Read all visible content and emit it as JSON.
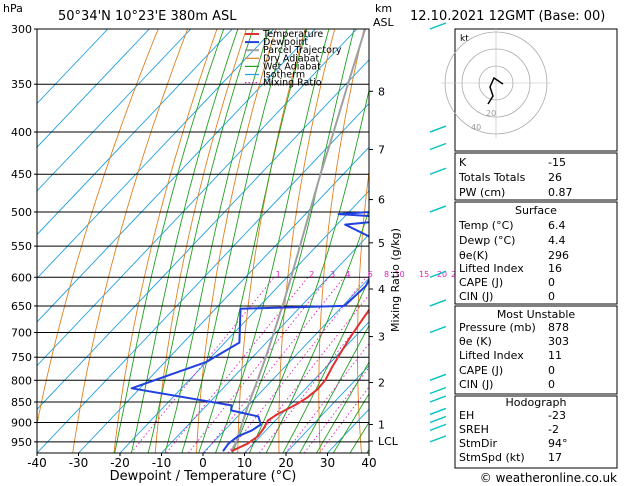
{
  "header": {
    "hpa_label": "hPa",
    "location": "50°34'N  10°23'E  380m  ASL",
    "km_label": "km",
    "asl_label": "ASL",
    "datetime": "12.10.2021  12GMT  (Base: 00)"
  },
  "footer": {
    "copyright": "© weatheronline.co.uk"
  },
  "chart_data": {
    "type": "line",
    "xlabel": "Dewpoint / Temperature (°C)",
    "ylabel": "Mixing Ratio (g/kg)",
    "x_ticks": [
      -40,
      -30,
      -20,
      -10,
      0,
      10,
      20,
      30,
      40
    ],
    "xlim": [
      -40,
      40
    ],
    "pressure_levels": [
      300,
      350,
      400,
      450,
      500,
      550,
      600,
      650,
      700,
      750,
      800,
      850,
      900,
      950
    ],
    "ylim_hpa": [
      980,
      300
    ],
    "y_scale": "log",
    "km_ticks": [
      {
        "label": "8",
        "p": 357
      },
      {
        "label": "7",
        "p": 420
      },
      {
        "label": "6",
        "p": 483
      },
      {
        "label": "5",
        "p": 545
      },
      {
        "label": "4",
        "p": 620
      },
      {
        "label": "3",
        "p": 708
      },
      {
        "label": "2",
        "p": 805
      },
      {
        "label": "1",
        "p": 905
      },
      {
        "label": "LCL",
        "p": 948
      }
    ],
    "mixing_ratio_labels": [
      "1",
      "2",
      "3",
      "4",
      "6",
      "8",
      "10",
      "15",
      "20",
      "25"
    ],
    "mixing_ratio_values": [
      1,
      2,
      3,
      4,
      6,
      8,
      10,
      15,
      20,
      25
    ],
    "legend": [
      "Temperature",
      "Dewpoint",
      "Parcel Trajectory",
      "Dry Adiabat",
      "Wet Adiabat",
      "Isotherm",
      "Mixing Ratio"
    ],
    "legend_position": "top",
    "colors": {
      "temperature": "#e03030",
      "dewpoint": "#2040e0",
      "parcel": "#a0a0a0",
      "dry_adiabat": "#e08020",
      "wet_adiabat": "#20a020",
      "isotherm": "#20a0e0",
      "mixing_ratio": "#e020c0",
      "wind": "#00c0c0"
    },
    "series": [
      {
        "name": "Temperature",
        "points": [
          [
            6.4,
            975
          ],
          [
            8.6,
            955
          ],
          [
            9.4,
            935
          ],
          [
            9.0,
            915
          ],
          [
            8.2,
            895
          ],
          [
            9.0,
            880
          ],
          [
            10.2,
            868
          ],
          [
            11.4,
            855
          ],
          [
            12.4,
            840
          ],
          [
            13.0,
            820
          ],
          [
            12.8,
            800
          ],
          [
            11.4,
            770
          ],
          [
            10.2,
            740
          ],
          [
            9.0,
            710
          ],
          [
            8.0,
            680
          ],
          [
            7.0,
            650
          ],
          [
            5.8,
            620
          ],
          [
            4.4,
            590
          ],
          [
            3.4,
            560
          ],
          [
            2.4,
            530
          ],
          [
            1.4,
            505
          ],
          [
            -0.6,
            475
          ],
          [
            -2.6,
            450
          ],
          [
            -4.0,
            425
          ],
          [
            -5.0,
            400
          ],
          [
            -6.0,
            385
          ],
          [
            -6.6,
            365
          ],
          [
            -7.4,
            352
          ],
          [
            -9.6,
            330
          ],
          [
            -12.0,
            300
          ]
        ]
      },
      {
        "name": "Dewpoint",
        "points": [
          [
            4.4,
            975
          ],
          [
            4.0,
            955
          ],
          [
            4.6,
            935
          ],
          [
            6.6,
            920
          ],
          [
            7.4,
            905
          ],
          [
            5.0,
            885
          ],
          [
            -3.0,
            870
          ],
          [
            -4.0,
            858
          ],
          [
            -32.0,
            818
          ],
          [
            -20.0,
            760
          ],
          [
            -16.5,
            720
          ],
          [
            -24.0,
            655
          ],
          [
            0.4,
            650
          ],
          [
            1.0,
            615
          ],
          [
            -1.4,
            575
          ],
          [
            -2.6,
            550
          ],
          [
            -18.0,
            518
          ],
          [
            -4.0,
            509
          ],
          [
            -22.0,
            503
          ],
          [
            -3.4,
            495
          ],
          [
            -3.0,
            450
          ],
          [
            -4.6,
            400
          ],
          [
            -11.4,
            392
          ],
          [
            -16.0,
            370
          ],
          [
            -32.0,
            356
          ],
          [
            -32.0,
            330
          ],
          [
            -31.0,
            300
          ]
        ]
      },
      {
        "name": "Parcel Trajectory",
        "points": [
          [
            6.4,
            975
          ],
          [
            5.5,
            950
          ],
          [
            2.5,
            900
          ],
          [
            -0.5,
            850
          ],
          [
            -3.5,
            800
          ],
          [
            -6.8,
            750
          ],
          [
            -10.5,
            700
          ],
          [
            -14.5,
            650
          ],
          [
            -19.0,
            600
          ],
          [
            -24.0,
            550
          ],
          [
            -29.5,
            500
          ],
          [
            -35.5,
            450
          ],
          [
            -42.0,
            400
          ],
          [
            -49.5,
            350
          ],
          [
            -58.0,
            300
          ]
        ]
      }
    ]
  },
  "indices": {
    "rows1": [
      {
        "label": "K",
        "value": "-15"
      },
      {
        "label": "Totals Totals",
        "value": "26"
      },
      {
        "label": "PW (cm)",
        "value": "0.87"
      }
    ],
    "surface": {
      "title": "Surface",
      "rows": [
        {
          "label": "Temp (°C)",
          "value": "6.4"
        },
        {
          "label": "Dewp (°C)",
          "value": "4.4"
        },
        {
          "label": "θe(K)",
          "value": "296"
        },
        {
          "label": "Lifted Index",
          "value": "16"
        },
        {
          "label": "CAPE (J)",
          "value": "0"
        },
        {
          "label": "CIN (J)",
          "value": "0"
        }
      ]
    },
    "most_unstable": {
      "title": "Most Unstable",
      "rows": [
        {
          "label": "Pressure (mb)",
          "value": "878"
        },
        {
          "label": "θe (K)",
          "value": "303"
        },
        {
          "label": "Lifted Index",
          "value": "11"
        },
        {
          "label": "CAPE (J)",
          "value": "0"
        },
        {
          "label": "CIN (J)",
          "value": "0"
        }
      ]
    },
    "hodograph": {
      "title": "Hodograph",
      "rows": [
        {
          "label": "EH",
          "value": "-23"
        },
        {
          "label": "SREH",
          "value": "-2"
        },
        {
          "label": "StmDir",
          "value": "94°"
        },
        {
          "label": "StmSpd (kt)",
          "value": "17"
        }
      ]
    }
  },
  "hodo": {
    "unit_label": "kt",
    "ring_labels": [
      "20",
      "40"
    ]
  }
}
